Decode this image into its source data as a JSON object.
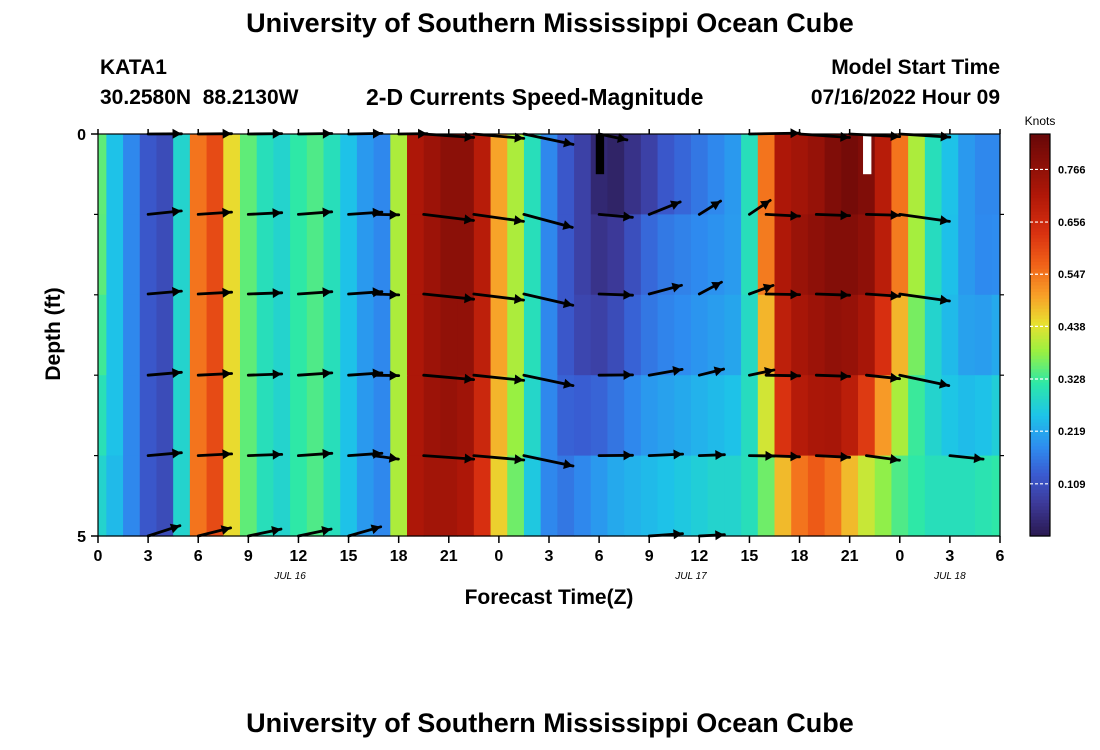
{
  "chart_data": {
    "type": "heatmap",
    "title": "University of Southern Mississippi Ocean Cube",
    "station": "KATA1",
    "location": "30.2580N  88.2130W",
    "subtitle": "2-D Currents Speed-Magnitude",
    "model_start_label": "Model Start Time",
    "model_start_value": "07/16/2022 Hour 09",
    "xlabel": "Forecast Time(Z)",
    "ylabel": "Depth (ft)",
    "x_range_hours": [
      0,
      54
    ],
    "y_range_ft": [
      0,
      5
    ],
    "y_ticks": [
      {
        "label": "0",
        "value": 0
      },
      {
        "label": "5",
        "value": 5
      }
    ],
    "y_minor_ticks": [
      1,
      2,
      3,
      4
    ],
    "x_ticks": [
      {
        "label": "0",
        "hour": 0
      },
      {
        "label": "3",
        "hour": 3
      },
      {
        "label": "6",
        "hour": 6
      },
      {
        "label": "9",
        "hour": 9
      },
      {
        "label": "12",
        "hour": 12
      },
      {
        "label": "15",
        "hour": 15
      },
      {
        "label": "18",
        "hour": 18
      },
      {
        "label": "21",
        "hour": 21
      },
      {
        "label": "0",
        "hour": 24
      },
      {
        "label": "3",
        "hour": 27
      },
      {
        "label": "6",
        "hour": 30
      },
      {
        "label": "9",
        "hour": 33
      },
      {
        "label": "12",
        "hour": 36
      },
      {
        "label": "15",
        "hour": 39
      },
      {
        "label": "18",
        "hour": 42
      },
      {
        "label": "21",
        "hour": 45
      },
      {
        "label": "0",
        "hour": 48
      },
      {
        "label": "3",
        "hour": 51
      },
      {
        "label": "6",
        "hour": 54
      }
    ],
    "date_labels": [
      {
        "label": "JUL 16",
        "hour": 11.5
      },
      {
        "label": "JUL 17",
        "hour": 35.5
      },
      {
        "label": "JUL 18",
        "hour": 51
      }
    ],
    "colorbar": {
      "label": "Knots",
      "min": 0.0,
      "max": 0.84,
      "ticks": [
        "0.109",
        "0.219",
        "0.328",
        "0.438",
        "0.547",
        "0.656",
        "0.766"
      ],
      "colormap": [
        [
          0.0,
          "#2a1a52"
        ],
        [
          0.08,
          "#3d3a9a"
        ],
        [
          0.15,
          "#3a5ad0"
        ],
        [
          0.22,
          "#2e8cf0"
        ],
        [
          0.3,
          "#1dc4e8"
        ],
        [
          0.38,
          "#2de8a8"
        ],
        [
          0.46,
          "#9af040"
        ],
        [
          0.53,
          "#e8e030"
        ],
        [
          0.6,
          "#f8a028"
        ],
        [
          0.68,
          "#f06018"
        ],
        [
          0.76,
          "#d83010"
        ],
        [
          0.85,
          "#b01808"
        ],
        [
          1.0,
          "#6a0808"
        ]
      ]
    },
    "time_hours": [
      0,
      1,
      2,
      3,
      4,
      5,
      6,
      7,
      8,
      9,
      10,
      11,
      12,
      13,
      14,
      15,
      16,
      17,
      18,
      19,
      20,
      21,
      22,
      23,
      24,
      25,
      26,
      27,
      28,
      29,
      30,
      31,
      32,
      33,
      34,
      35,
      36,
      37,
      38,
      39,
      40,
      41,
      42,
      43,
      44,
      45,
      46,
      47,
      48,
      49,
      50,
      51,
      52,
      53,
      54
    ],
    "depth_levels_ft": [
      0,
      1,
      2,
      3,
      4,
      5
    ],
    "speed_knots": [
      [
        0.35,
        0.25,
        0.18,
        0.12,
        0.1,
        0.28,
        0.55,
        0.6,
        0.45,
        0.35,
        0.3,
        0.28,
        0.32,
        0.34,
        0.3,
        0.25,
        0.2,
        0.18,
        0.4,
        0.72,
        0.75,
        0.78,
        0.78,
        0.7,
        0.5,
        0.4,
        0.3,
        0.18,
        0.12,
        0.08,
        0.03,
        0.02,
        0.05,
        0.08,
        0.12,
        0.14,
        0.16,
        0.18,
        0.2,
        0.3,
        0.55,
        0.72,
        0.74,
        0.76,
        0.8,
        0.82,
        0.8,
        0.7,
        0.55,
        0.4,
        0.3,
        0.25,
        0.2,
        0.18,
        0.18
      ],
      [
        0.35,
        0.25,
        0.18,
        0.12,
        0.1,
        0.28,
        0.55,
        0.6,
        0.45,
        0.35,
        0.3,
        0.28,
        0.32,
        0.34,
        0.3,
        0.25,
        0.2,
        0.18,
        0.4,
        0.72,
        0.75,
        0.78,
        0.78,
        0.7,
        0.5,
        0.4,
        0.3,
        0.18,
        0.12,
        0.08,
        0.05,
        0.06,
        0.1,
        0.14,
        0.16,
        0.17,
        0.18,
        0.19,
        0.2,
        0.3,
        0.55,
        0.72,
        0.76,
        0.78,
        0.8,
        0.8,
        0.78,
        0.7,
        0.55,
        0.4,
        0.3,
        0.25,
        0.2,
        0.18,
        0.18
      ],
      [
        0.34,
        0.25,
        0.18,
        0.12,
        0.1,
        0.28,
        0.55,
        0.6,
        0.45,
        0.35,
        0.3,
        0.28,
        0.32,
        0.34,
        0.3,
        0.25,
        0.2,
        0.18,
        0.4,
        0.72,
        0.75,
        0.78,
        0.78,
        0.7,
        0.5,
        0.4,
        0.3,
        0.18,
        0.12,
        0.08,
        0.06,
        0.08,
        0.12,
        0.15,
        0.17,
        0.18,
        0.19,
        0.2,
        0.21,
        0.3,
        0.52,
        0.7,
        0.74,
        0.76,
        0.78,
        0.78,
        0.76,
        0.68,
        0.52,
        0.38,
        0.28,
        0.24,
        0.2,
        0.19,
        0.2
      ],
      [
        0.32,
        0.25,
        0.18,
        0.12,
        0.1,
        0.28,
        0.55,
        0.6,
        0.45,
        0.35,
        0.3,
        0.28,
        0.32,
        0.34,
        0.3,
        0.25,
        0.2,
        0.18,
        0.4,
        0.72,
        0.75,
        0.76,
        0.76,
        0.68,
        0.5,
        0.4,
        0.3,
        0.18,
        0.12,
        0.1,
        0.1,
        0.12,
        0.15,
        0.17,
        0.18,
        0.19,
        0.2,
        0.21,
        0.22,
        0.28,
        0.45,
        0.68,
        0.72,
        0.74,
        0.76,
        0.74,
        0.7,
        0.6,
        0.45,
        0.35,
        0.28,
        0.24,
        0.22,
        0.22,
        0.24
      ],
      [
        0.3,
        0.25,
        0.18,
        0.12,
        0.1,
        0.28,
        0.55,
        0.6,
        0.45,
        0.35,
        0.3,
        0.28,
        0.32,
        0.34,
        0.3,
        0.25,
        0.2,
        0.18,
        0.4,
        0.72,
        0.75,
        0.76,
        0.74,
        0.66,
        0.48,
        0.38,
        0.28,
        0.18,
        0.14,
        0.14,
        0.15,
        0.17,
        0.19,
        0.21,
        0.22,
        0.23,
        0.24,
        0.25,
        0.26,
        0.3,
        0.42,
        0.62,
        0.7,
        0.72,
        0.72,
        0.68,
        0.6,
        0.48,
        0.38,
        0.32,
        0.28,
        0.26,
        0.25,
        0.26,
        0.28
      ],
      [
        0.28,
        0.24,
        0.18,
        0.12,
        0.1,
        0.28,
        0.55,
        0.6,
        0.45,
        0.35,
        0.3,
        0.28,
        0.32,
        0.34,
        0.3,
        0.25,
        0.2,
        0.18,
        0.4,
        0.72,
        0.74,
        0.74,
        0.72,
        0.64,
        0.46,
        0.36,
        0.26,
        0.18,
        0.16,
        0.18,
        0.2,
        0.22,
        0.23,
        0.24,
        0.25,
        0.26,
        0.27,
        0.28,
        0.28,
        0.3,
        0.36,
        0.48,
        0.55,
        0.58,
        0.55,
        0.48,
        0.42,
        0.38,
        0.34,
        0.32,
        0.3,
        0.3,
        0.3,
        0.31,
        0.32
      ]
    ],
    "vectors": [
      {
        "depth": 0,
        "items": [
          [
            3,
            5,
            0.4
          ],
          [
            6,
            8,
            0.6
          ],
          [
            9,
            11,
            0.7
          ],
          [
            12,
            14,
            0.8
          ],
          [
            15,
            17,
            1.0
          ],
          [
            18,
            19.7,
            0.9
          ],
          [
            19.5,
            22.5,
            -4.0
          ],
          [
            22.5,
            25.5,
            -5.0
          ],
          [
            25.5,
            28.5,
            -12.0
          ],
          [
            30,
            31.7,
            -12.0
          ],
          [
            39,
            42,
            1.0
          ],
          [
            42,
            45,
            -4.0
          ],
          [
            45,
            48,
            -3.0
          ],
          [
            48,
            51,
            -3.5
          ]
        ]
      },
      {
        "depth": 1,
        "items": [
          [
            3,
            5,
            6.0
          ],
          [
            6,
            8,
            4.0
          ],
          [
            9,
            11,
            3.0
          ],
          [
            12,
            14,
            4.5
          ],
          [
            15,
            17,
            4.0
          ],
          [
            16.5,
            18,
            -1.0
          ],
          [
            19.5,
            22.5,
            -7.0
          ],
          [
            22.5,
            25.5,
            -8.0
          ],
          [
            25.5,
            28.5,
            -15.0
          ],
          [
            30,
            32,
            -5.0
          ],
          [
            33,
            35,
            22.0
          ],
          [
            36,
            37.5,
            32.0
          ],
          [
            39,
            40.5,
            34.0
          ],
          [
            40,
            42,
            -3.0
          ],
          [
            43,
            45,
            -2.0
          ],
          [
            46,
            48,
            -1.5
          ],
          [
            48,
            51,
            -8.0
          ]
        ]
      },
      {
        "depth": 1.99,
        "items": [
          [
            3,
            5,
            5.0
          ],
          [
            6,
            8,
            3.0
          ],
          [
            9,
            11,
            2.0
          ],
          [
            12,
            14,
            4.0
          ],
          [
            15,
            17,
            4.0
          ],
          [
            16.5,
            18,
            -2.0
          ],
          [
            19.5,
            22.5,
            -6.0
          ],
          [
            22.5,
            25.5,
            -7.0
          ],
          [
            25.5,
            28.5,
            -13.0
          ],
          [
            30,
            32,
            -2.0
          ],
          [
            33,
            35,
            15.0
          ],
          [
            36,
            37.5,
            28.0
          ],
          [
            39,
            40.5,
            20.0
          ],
          [
            40,
            42,
            -1.0
          ],
          [
            43,
            45,
            -2.0
          ],
          [
            46,
            48,
            -4.0
          ],
          [
            48,
            51,
            -8.0
          ]
        ]
      },
      {
        "depth": 3,
        "items": [
          [
            3,
            5,
            5.0
          ],
          [
            6,
            8,
            3.0
          ],
          [
            9,
            11,
            2.0
          ],
          [
            12,
            14,
            4.0
          ],
          [
            15,
            17,
            4.0
          ],
          [
            16.5,
            18,
            -1.0
          ],
          [
            19.5,
            22.5,
            -5.0
          ],
          [
            22.5,
            25.5,
            -6.0
          ],
          [
            25.5,
            28.5,
            -12.0
          ],
          [
            30,
            32,
            0.5
          ],
          [
            33,
            35,
            10.0
          ],
          [
            36,
            37.5,
            14.0
          ],
          [
            39,
            40.5,
            12.0
          ],
          [
            40,
            42,
            -1.0
          ],
          [
            43,
            45,
            -2.0
          ],
          [
            46,
            48,
            -6.0
          ],
          [
            48,
            51,
            -12.0
          ]
        ]
      },
      {
        "depth": 4,
        "items": [
          [
            3,
            5,
            5.0
          ],
          [
            6,
            8,
            3.0
          ],
          [
            9,
            11,
            2.0
          ],
          [
            12,
            14,
            4.0
          ],
          [
            15,
            17,
            4.0
          ],
          [
            16.5,
            18,
            -8.0
          ],
          [
            19.5,
            22.5,
            -4.0
          ],
          [
            22.5,
            25.5,
            -5.0
          ],
          [
            25.5,
            28.5,
            -12.0
          ],
          [
            30,
            32,
            0.5
          ],
          [
            33,
            35,
            2.5
          ],
          [
            36,
            37.5,
            2.0
          ],
          [
            39,
            40.5,
            -1.0
          ],
          [
            40,
            42,
            -2.0
          ],
          [
            43,
            45,
            -3.0
          ],
          [
            46,
            48,
            -8.0
          ],
          [
            51,
            53,
            -6.0
          ]
        ]
      },
      {
        "depth": 5,
        "items": [
          [
            3,
            5,
            18.0
          ],
          [
            6,
            8,
            14.0
          ],
          [
            9,
            11,
            12.0
          ],
          [
            12,
            14,
            12.0
          ],
          [
            15,
            17,
            16.0
          ],
          [
            33,
            35,
            4.0
          ],
          [
            36,
            37.5,
            3.0
          ]
        ]
      }
    ],
    "masked_columns_hours": [
      {
        "hour": 30,
        "depth_to": 0.5,
        "color": "#000000"
      },
      {
        "hour": 46,
        "depth_to": 0.5,
        "color": "#ffffff"
      }
    ]
  }
}
